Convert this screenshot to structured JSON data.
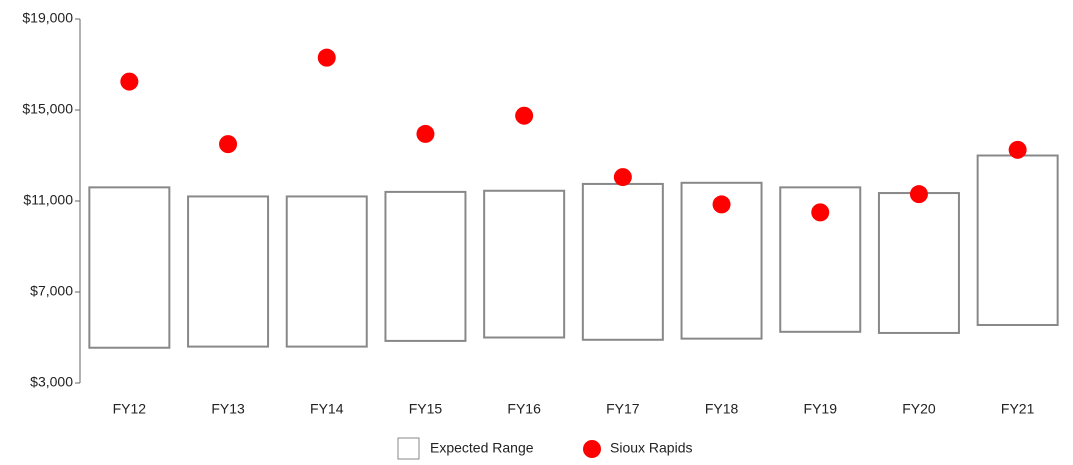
{
  "chart_data": {
    "type": "range",
    "categories": [
      "FY12",
      "FY13",
      "FY14",
      "FY15",
      "FY16",
      "FY17",
      "FY18",
      "FY19",
      "FY20",
      "FY21"
    ],
    "series": [
      {
        "name": "Expected Range",
        "color": "#888888",
        "low": [
          4550,
          4600,
          4600,
          4850,
          5000,
          4900,
          4950,
          5250,
          5200,
          5550
        ],
        "high": [
          11600,
          11200,
          11200,
          11400,
          11450,
          11750,
          11800,
          11600,
          11350,
          13000
        ]
      },
      {
        "name": "Sioux Rapids",
        "color": "#ff0000",
        "values": [
          16250,
          13500,
          17300,
          13950,
          14750,
          12050,
          10850,
          10500,
          11300,
          13250
        ]
      }
    ],
    "ylim": [
      3000,
      19000
    ],
    "yticks": [
      {
        "value": 3000,
        "label": "$3,000"
      },
      {
        "value": 7000,
        "label": "$7,000"
      },
      {
        "value": 11000,
        "label": "$11,000"
      },
      {
        "value": 15000,
        "label": "$15,000"
      },
      {
        "value": 19000,
        "label": "$19,000"
      }
    ]
  }
}
